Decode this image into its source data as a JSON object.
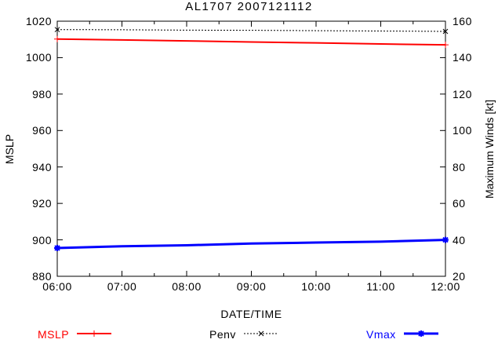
{
  "title": "AL1707 2007121112",
  "colors": {
    "background": "#ffffff",
    "axis": "#000000",
    "mslp": "#ff0000",
    "penv": "#000000",
    "vmax": "#0000ff"
  },
  "legend": [
    {
      "label": "MSLP",
      "color": "#ff0000",
      "line_style": "solid",
      "marker": "plus"
    },
    {
      "label": "Penv",
      "color": "#000000",
      "line_style": "dotted",
      "marker": "cross"
    },
    {
      "label": "Vmax",
      "color": "#0000ff",
      "line_style": "solid",
      "marker": "asterisk"
    }
  ],
  "chart_data": {
    "type": "line",
    "title": "AL1707 2007121112",
    "xlabel": "DATE/TIME",
    "ylabel_left": "MSLP",
    "ylabel_right": "Maximum Winds [kt]",
    "x_tick_labels": [
      "06:00",
      "07:00",
      "08:00",
      "09:00",
      "10:00",
      "11:00",
      "12:00"
    ],
    "x_hours": [
      6,
      7,
      8,
      9,
      10,
      11,
      12
    ],
    "x_minor_tick_interval_hours": 0.5,
    "xlim_hours": [
      6,
      12
    ],
    "ylim_left": [
      880,
      1020
    ],
    "yticks_left": [
      880,
      900,
      920,
      940,
      960,
      980,
      1000,
      1020
    ],
    "ylim_right": [
      20,
      160
    ],
    "yticks_right": [
      20,
      40,
      60,
      80,
      100,
      120,
      140,
      160
    ],
    "grid": false,
    "legend_position": "bottom",
    "series": [
      {
        "name": "MSLP",
        "axis": "left",
        "color": "#ff0000",
        "style": "solid",
        "line_width": 2,
        "marker": "plus",
        "markers_at": "ends",
        "values": [
          1010.2,
          1009.7,
          1009.2,
          1008.6,
          1008.1,
          1007.5,
          1007.0
        ]
      },
      {
        "name": "Penv",
        "axis": "left",
        "color": "#000000",
        "style": "dotted",
        "line_width": 1,
        "marker": "cross",
        "markers_at": "ends",
        "values": [
          1015.4,
          1015.3,
          1015.1,
          1015.0,
          1014.8,
          1014.6,
          1014.4
        ]
      },
      {
        "name": "Vmax",
        "axis": "right",
        "color": "#0000ff",
        "style": "solid",
        "line_width": 3,
        "marker": "asterisk",
        "markers_at": "ends",
        "values": [
          35.5,
          36.5,
          37.0,
          38.0,
          38.5,
          39.0,
          40.0
        ]
      }
    ]
  }
}
